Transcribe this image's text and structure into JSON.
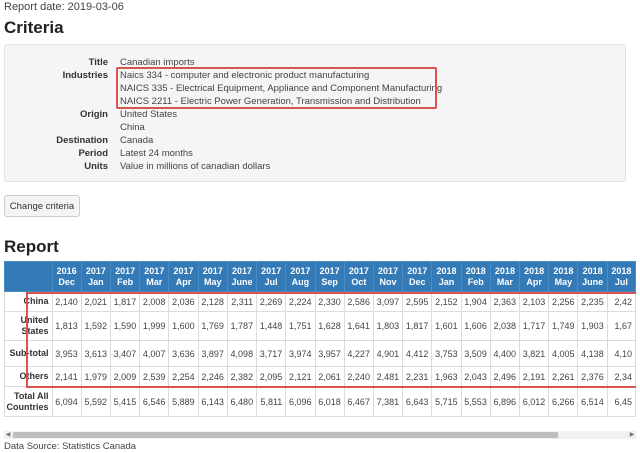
{
  "report_date": "Report date: 2019-03-06",
  "criteria": {
    "heading": "Criteria",
    "title_label": "Title",
    "title_value": "Canadian imports",
    "industries_label": "Industries",
    "industries": [
      "Naics 334 - computer and electronic product manufacturing",
      "NAICS 335 - Electrical Equipment, Appliance and Component Manufacturing",
      "NAICS 2211 - Electric Power Generation, Transmission and Distribution"
    ],
    "origin_label": "Origin",
    "origins": [
      "United States",
      "China"
    ],
    "destination_label": "Destination",
    "destination_value": "Canada",
    "period_label": "Period",
    "period_value": "Latest 24 months",
    "units_label": "Units",
    "units_value": "Value in millions of canadian dollars",
    "highlight_color": "#d9534f"
  },
  "change_criteria_label": "Change criteria",
  "report": {
    "heading": "Report",
    "header_color": "#337ab7",
    "columns": [
      {
        "year": "2016",
        "month": "Dec"
      },
      {
        "year": "2017",
        "month": "Jan"
      },
      {
        "year": "2017",
        "month": "Feb"
      },
      {
        "year": "2017",
        "month": "Mar"
      },
      {
        "year": "2017",
        "month": "Apr"
      },
      {
        "year": "2017",
        "month": "May"
      },
      {
        "year": "2017",
        "month": "June"
      },
      {
        "year": "2017",
        "month": "Jul"
      },
      {
        "year": "2017",
        "month": "Aug"
      },
      {
        "year": "2017",
        "month": "Sep"
      },
      {
        "year": "2017",
        "month": "Oct"
      },
      {
        "year": "2017",
        "month": "Nov"
      },
      {
        "year": "2017",
        "month": "Dec"
      },
      {
        "year": "2018",
        "month": "Jan"
      },
      {
        "year": "2018",
        "month": "Feb"
      },
      {
        "year": "2018",
        "month": "Mar"
      },
      {
        "year": "2018",
        "month": "Apr"
      },
      {
        "year": "2018",
        "month": "May"
      },
      {
        "year": "2018",
        "month": "June"
      },
      {
        "year": "2018",
        "month": "Jul"
      }
    ],
    "rows": [
      {
        "label": "China",
        "values": [
          "2,140",
          "2,021",
          "1,817",
          "2,008",
          "2,036",
          "2,128",
          "2,311",
          "2,269",
          "2,224",
          "2,330",
          "2,586",
          "3,097",
          "2,595",
          "2,152",
          "1,904",
          "2,363",
          "2,103",
          "2,256",
          "2,235",
          "2,42"
        ]
      },
      {
        "label": "United States",
        "values": [
          "1,813",
          "1,592",
          "1,590",
          "1,999",
          "1,600",
          "1,769",
          "1,787",
          "1,448",
          "1,751",
          "1,628",
          "1,641",
          "1,803",
          "1,817",
          "1,601",
          "1,606",
          "2,038",
          "1,717",
          "1,749",
          "1,903",
          "1,67"
        ]
      },
      {
        "label": "Sub-total",
        "values": [
          "3,953",
          "3,613",
          "3,407",
          "4,007",
          "3,636",
          "3,897",
          "4,098",
          "3,717",
          "3,974",
          "3,957",
          "4,227",
          "4,901",
          "4,412",
          "3,753",
          "3,509",
          "4,400",
          "3,821",
          "4,005",
          "4,138",
          "4,10"
        ]
      },
      {
        "label": "Others",
        "values": [
          "2,141",
          "1,979",
          "2,009",
          "2,539",
          "2,254",
          "2,246",
          "2,382",
          "2,095",
          "2,121",
          "2,061",
          "2,240",
          "2,481",
          "2,231",
          "1,963",
          "2,043",
          "2,496",
          "2,191",
          "2,261",
          "2,376",
          "2,34"
        ]
      },
      {
        "label": "Total All Countries",
        "values": [
          "6,094",
          "5,592",
          "5,415",
          "6,546",
          "5,889",
          "6,143",
          "6,480",
          "5,811",
          "6,096",
          "6,018",
          "6,467",
          "7,381",
          "6,643",
          "5,715",
          "5,553",
          "6,896",
          "6,012",
          "6,266",
          "6,514",
          "6,45"
        ]
      }
    ]
  },
  "scrollbar": {
    "left_arrow": "◀",
    "right_arrow": "▶"
  },
  "data_source": "Data Source: Statistics Canada"
}
